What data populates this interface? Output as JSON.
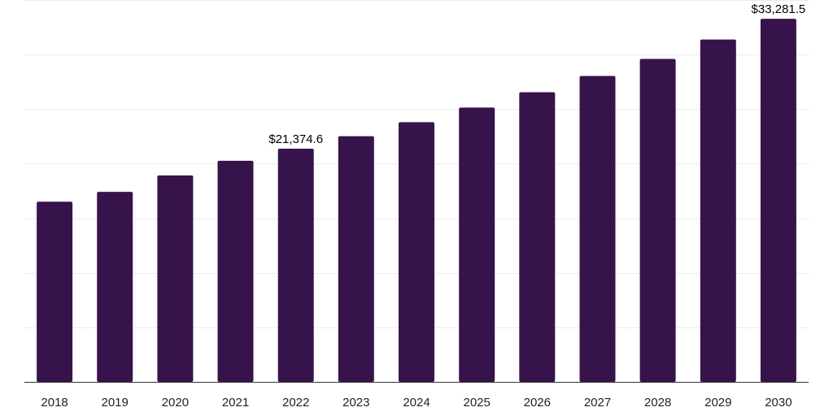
{
  "chart_data": {
    "type": "bar",
    "categories": [
      "2018",
      "2019",
      "2020",
      "2021",
      "2022",
      "2023",
      "2024",
      "2025",
      "2026",
      "2027",
      "2028",
      "2029",
      "2030"
    ],
    "values": [
      16510,
      17420,
      18920,
      20260,
      21374.6,
      22520,
      23800,
      25140,
      26550,
      28040,
      29600,
      31380,
      33281.5
    ],
    "data_labels": {
      "2022": "$21,374.6",
      "2030": "$33,281.5"
    },
    "title": "",
    "xlabel": "",
    "ylabel": "",
    "ylim": [
      0,
      35000
    ],
    "grid": true,
    "legend": "none",
    "bar_color": "#37134b",
    "grid_color": "#ececec",
    "axis_color": "#333333"
  }
}
